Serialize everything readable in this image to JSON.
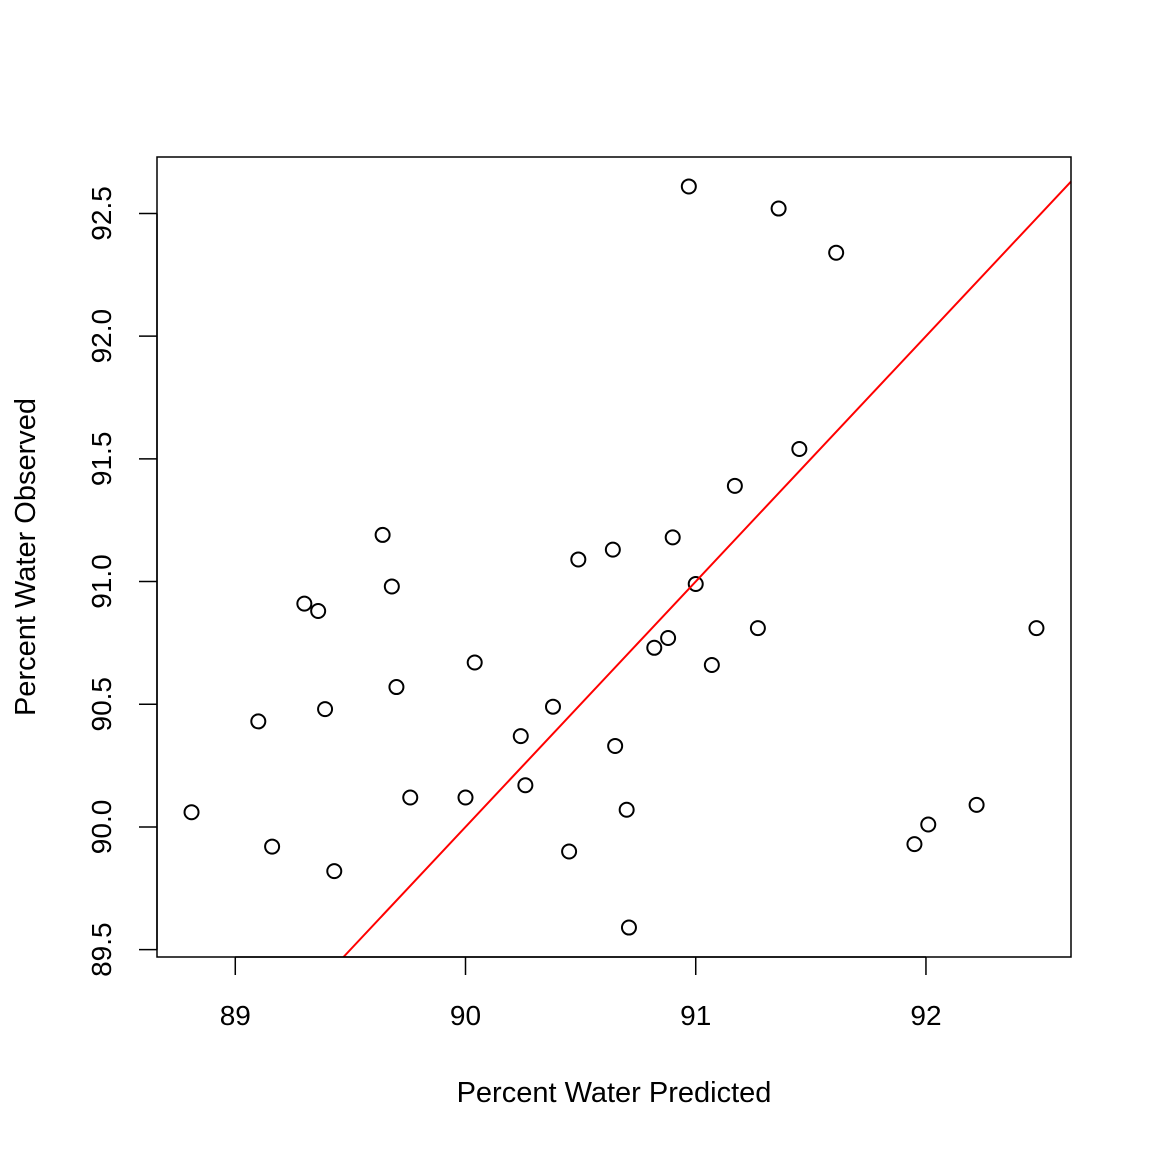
{
  "chart_data": {
    "type": "scatter",
    "title": "",
    "xlabel": "Percent Water Predicted",
    "ylabel": "Percent Water Observed",
    "xlim": [
      88.66,
      92.63
    ],
    "ylim": [
      89.47,
      92.73
    ],
    "x_ticks": [
      89,
      90,
      91,
      92
    ],
    "x_tick_labels": [
      "89",
      "90",
      "91",
      "92"
    ],
    "y_ticks": [
      89.5,
      90.0,
      90.5,
      91.0,
      91.5,
      92.0,
      92.5
    ],
    "y_tick_labels": [
      "89.5",
      "90.0",
      "90.5",
      "91.0",
      "91.5",
      "92.0",
      "92.5"
    ],
    "grid": false,
    "point_color": "#000000",
    "line_color": "#ff0000",
    "reference_line": {
      "intercept": 0,
      "slope": 1
    },
    "points": [
      {
        "x": 88.81,
        "y": 90.06
      },
      {
        "x": 89.1,
        "y": 90.43
      },
      {
        "x": 89.16,
        "y": 89.92
      },
      {
        "x": 89.3,
        "y": 90.91
      },
      {
        "x": 89.36,
        "y": 90.88
      },
      {
        "x": 89.39,
        "y": 90.48
      },
      {
        "x": 89.43,
        "y": 89.82
      },
      {
        "x": 89.64,
        "y": 91.19
      },
      {
        "x": 89.68,
        "y": 90.98
      },
      {
        "x": 89.7,
        "y": 90.57
      },
      {
        "x": 89.76,
        "y": 90.12
      },
      {
        "x": 90.0,
        "y": 90.12
      },
      {
        "x": 90.04,
        "y": 90.67
      },
      {
        "x": 90.24,
        "y": 90.37
      },
      {
        "x": 90.26,
        "y": 90.17
      },
      {
        "x": 90.38,
        "y": 90.49
      },
      {
        "x": 90.45,
        "y": 89.9
      },
      {
        "x": 90.49,
        "y": 91.09
      },
      {
        "x": 90.64,
        "y": 91.13
      },
      {
        "x": 90.65,
        "y": 90.33
      },
      {
        "x": 90.7,
        "y": 90.07
      },
      {
        "x": 90.71,
        "y": 89.59
      },
      {
        "x": 90.82,
        "y": 90.73
      },
      {
        "x": 90.88,
        "y": 90.77
      },
      {
        "x": 90.9,
        "y": 91.18
      },
      {
        "x": 90.97,
        "y": 92.61
      },
      {
        "x": 91.0,
        "y": 90.99
      },
      {
        "x": 91.07,
        "y": 90.66
      },
      {
        "x": 91.17,
        "y": 91.39
      },
      {
        "x": 91.27,
        "y": 90.81
      },
      {
        "x": 91.36,
        "y": 92.52
      },
      {
        "x": 91.45,
        "y": 91.54
      },
      {
        "x": 91.61,
        "y": 92.34
      },
      {
        "x": 91.95,
        "y": 89.93
      },
      {
        "x": 92.01,
        "y": 90.01
      },
      {
        "x": 92.22,
        "y": 90.09
      },
      {
        "x": 92.48,
        "y": 90.81
      }
    ]
  }
}
